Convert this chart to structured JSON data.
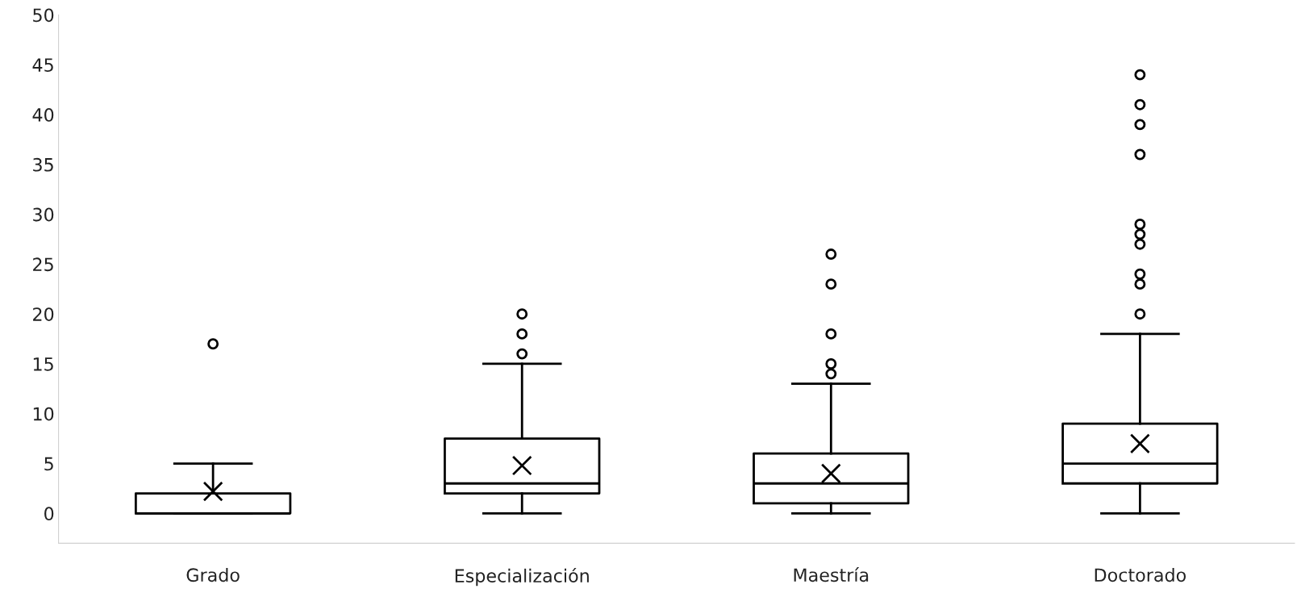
{
  "chart_data": {
    "type": "box",
    "categories": [
      "Grado",
      "Especialización",
      "Maestría",
      "Doctorado"
    ],
    "boxes": [
      {
        "low": 0,
        "q1": 0,
        "median": 0,
        "q3": 2,
        "high": 5,
        "mean": 2.2,
        "outliers": [
          17
        ]
      },
      {
        "low": 0,
        "q1": 2,
        "median": 3,
        "q3": 7.5,
        "high": 15,
        "mean": 4.8,
        "outliers": [
          16,
          18,
          20
        ]
      },
      {
        "low": 0,
        "q1": 1,
        "median": 3,
        "q3": 6,
        "high": 13,
        "mean": 4,
        "outliers": [
          14,
          15,
          18,
          23,
          26
        ]
      },
      {
        "low": 0,
        "q1": 3,
        "median": 5,
        "q3": 9,
        "high": 18,
        "mean": 7,
        "outliers": [
          20,
          23,
          24,
          27,
          28,
          29,
          36,
          39,
          41,
          44
        ]
      }
    ],
    "color": "#000000",
    "ylim": [
      -3,
      50
    ],
    "yticks": [
      0,
      5,
      10,
      15,
      20,
      25,
      30,
      35,
      40,
      45,
      50
    ],
    "grid": false,
    "marker": "cross"
  }
}
